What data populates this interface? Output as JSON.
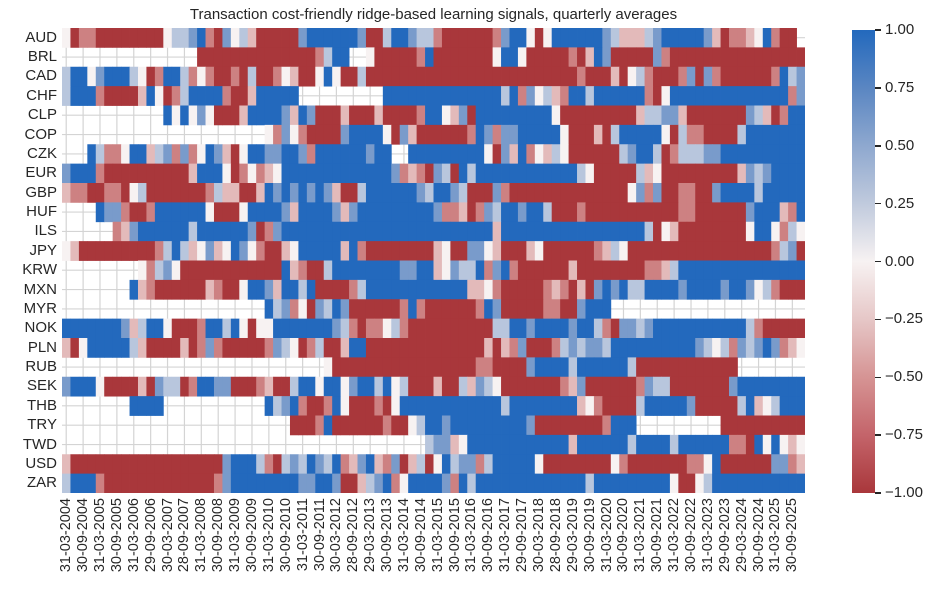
{
  "chart_data": {
    "type": "heatmap",
    "title": "Transaction cost-friendly ridge-based learning signals, quarterly averages",
    "xlabel": "",
    "ylabel": "",
    "rows": [
      "AUD",
      "BRL",
      "CAD",
      "CHF",
      "CLP",
      "COP",
      "CZK",
      "EUR",
      "GBP",
      "HUF",
      "ILS",
      "JPY",
      "KRW",
      "MXN",
      "MYR",
      "NOK",
      "PLN",
      "RUB",
      "SEK",
      "THB",
      "TRY",
      "TWD",
      "USD",
      "ZAR"
    ],
    "x_tick_labels": [
      "31-03-2004",
      "30-09-2004",
      "31-03-2005",
      "30-09-2005",
      "31-03-2006",
      "29-09-2006",
      "30-03-2007",
      "28-09-2007",
      "31-03-2008",
      "30-09-2008",
      "31-03-2009",
      "30-09-2009",
      "31-03-2010",
      "30-09-2010",
      "31-03-2011",
      "30-09-2011",
      "30-03-2012",
      "28-09-2012",
      "29-03-2013",
      "30-09-2013",
      "31-03-2014",
      "30-09-2014",
      "31-03-2015",
      "30-09-2015",
      "31-03-2016",
      "30-09-2016",
      "31-03-2017",
      "29-09-2017",
      "30-03-2018",
      "28-09-2018",
      "29-03-2019",
      "30-09-2019",
      "31-03-2020",
      "30-09-2020",
      "31-03-2021",
      "30-09-2021",
      "31-03-2022",
      "30-09-2022",
      "31-03-2023",
      "29-09-2023",
      "29-03-2024",
      "30-09-2024",
      "31-03-2025",
      "30-09-2025"
    ],
    "n_columns": 88,
    "value_range": [
      -1.0,
      1.0
    ],
    "colormap": "vlag_r (red = -1, white = 0, blue = +1)",
    "colorbar_ticks": [
      "1.00",
      "0.75",
      "0.50",
      "0.25",
      "0.00",
      "−0.25",
      "−0.50",
      "−0.75",
      "−1.00"
    ],
    "encoding": {
      "R": -1.0,
      "r": -0.6,
      "p": -0.3,
      "w": 0.0,
      "l": 0.3,
      "m": 0.6,
      "B": 1.0,
      ".": null
    },
    "cells": [
      "wRrrRRRRRRRRwllmBrRmwlpRRRRRmBBBBBBmRRlBBmllrRRRRRRrmBBwRwBBBBBBmlppplmBBBBBmpRrrpwBrRR",
      "................RRRRRRRRRRRRRRrlBB..wRRRRRrBRRRRRRRwBBwRRRRRrRpBmRRRRRmrRRRRRRRRRRRRRRRRR",
      "lBBwmBBBlwRrBBlrwrRRrRlRRrwpRRwBwRRlRRRRRRRRRRRRRRRRRRRRRRRRRrRRRpRwlrRRRrmRmrRRRRRRrBlmmR",
      "lBBBrRRRRpBwRrlBBBBrRRpBBBBB..........BBBBBBBBBBBBBBlBrmwlprBBlBBBBBBrRwBBBBBBBBBBBBBBrmBB",
      "............BwBwmwRRRpBBBBmpBmRRRpRRRpRRRRrBBwpmRBBBBBBBBBwRRRRRRRRRpllmmpRRRRRRRmlpRrBBBB",
      "........................wrmwrRRRRmBBBBwRmpRRRRRRrBmrmmBBBBBwRRRpRlBBBBBwRlrrRRRRlBBBBBBBBB",
      "...BlrrwBBplmrmrwBmpRwBBmmBBmrBBBBBBmBB..BBBBBBBBBwRmpBrwplwRRRRRRlmBBlRrlllmmBBBBBBBBBBBB",
      "mBBBrRRRRRRRRRRpBBBwRrwrpwBBBBBBBBBBBBBmrprRmlRBlBBBBBBBBBBBBlwRRRRRlpwRRRRRRRRRpmlmBBBBBm",
      "prrRRrrRwlRRRRRRRrlppRRpBmBmBmBmpRRlBBBBBBmlBBmlRRRmrRRRRRRRRRRRRRRwmrmRRrrRRmBBBBlBBBBBBl",
      "....BmmrRRrBBBBBBwRRRwBBBBmpBBBBmpmBBBBBBBBBmrrpRrmlBBmBBlRRRrRRRRRRRRRRRrrRRRRRRmBBBprBBB",
      "......rpmBBBBBBlBBBBBBmRrmBBBBBBBBBBBBBBBBBBBBBBBBBpBBBBBBBBBBBBBBBBBlRwpRRRRRRRRwBBwrlwBw",
      "wpRRRRRRRRRrlBlpwmpwBmwrRRpwBBBBBpBrRRRRRRRRpwRRmmwpRRRpwRRRRRRrplwRRRRRRRRRRRRRRRRRrlmRRR",
      ".........wrlmwRRRRRRRRRRRRBprRRlBBBBBBBBmmBBpwmllBrmBrRRRRRRpRRRRRRRRrrplBBBBBBBBBBBBBBBBB",
      "........BprRRRRRRprRRwBBmpBBlBRRRRrlBBBBBBBBBBBBppwrRRRRRrprRpRmBmBllBBBBmBBBBmBBmwlrRRRRB",
      "........................BlmrwRmlBmRRRRRRrBrRRRRRRrBmRRRRRrrRRmBBB.........................",
      "BBBBBBBmplBBwRRRrBBlBwRwwBBBBBBBmlrRrrwlrRRRRRRRRRRllBBmBBBBmBBlrRmmlmBBBBBBBBBBBlrRRRRRlB",
      "pRwBBBBBlpRRRRpRrmrRRRRRrmlwRrlRRpBBRRRRRRRRRRRRRRpRprmRRRrlmlmmlBBBBBBBBBBmlwlrmlmBmrpwBBB",
      "...............................wRRRRRRRRRRRRRRRRRrrRRRRmBBBBlBBBBBBlRRRRRRRRRRRR..........R",
      "mBBBwRRRRpRmllRrBBmmRRRrpRRlBBwBBwmBBlBwlRRRpRRlpmlwRRRRRRRrpmRRRRRRrmllRRRRRRRmBBBBBBBBBB",
      "........BBBB............BlmBrRRrBwRRRrRwBBBBBBBBBBBBlBBBBBBBBpwrRRRRlBBBBBmRRRRRlBpwlBBBBw",
      "...........................RRRrBRRRRRRrRRwlBBmBBBBBBBBBmRRRRRRRRrBBB..........RRRRRRRRRRR",
      "...........................................lmmpwBBBBBBBBBBBBpBBBBBBlBBBBlBBBBBBrrRBwBwpwlrB",
      "pRRRRRRRRRRRRRRRRRRmBBBlrRlmlBmlBrpmBprmRplRwBlmmrlBBBBBwRRRRRRRRwrRRRRRRRrrwBRRRRRRmmrpwB",
      "lBBBrRRRRRRRRRRRRRrmBBBBBBBBmmBBmRRplmBrwBBBBmrBlBBBBBBBBBBBBBlBBBBBBBBBwRRwlBBBBBBBBBBBBB"
    ]
  }
}
